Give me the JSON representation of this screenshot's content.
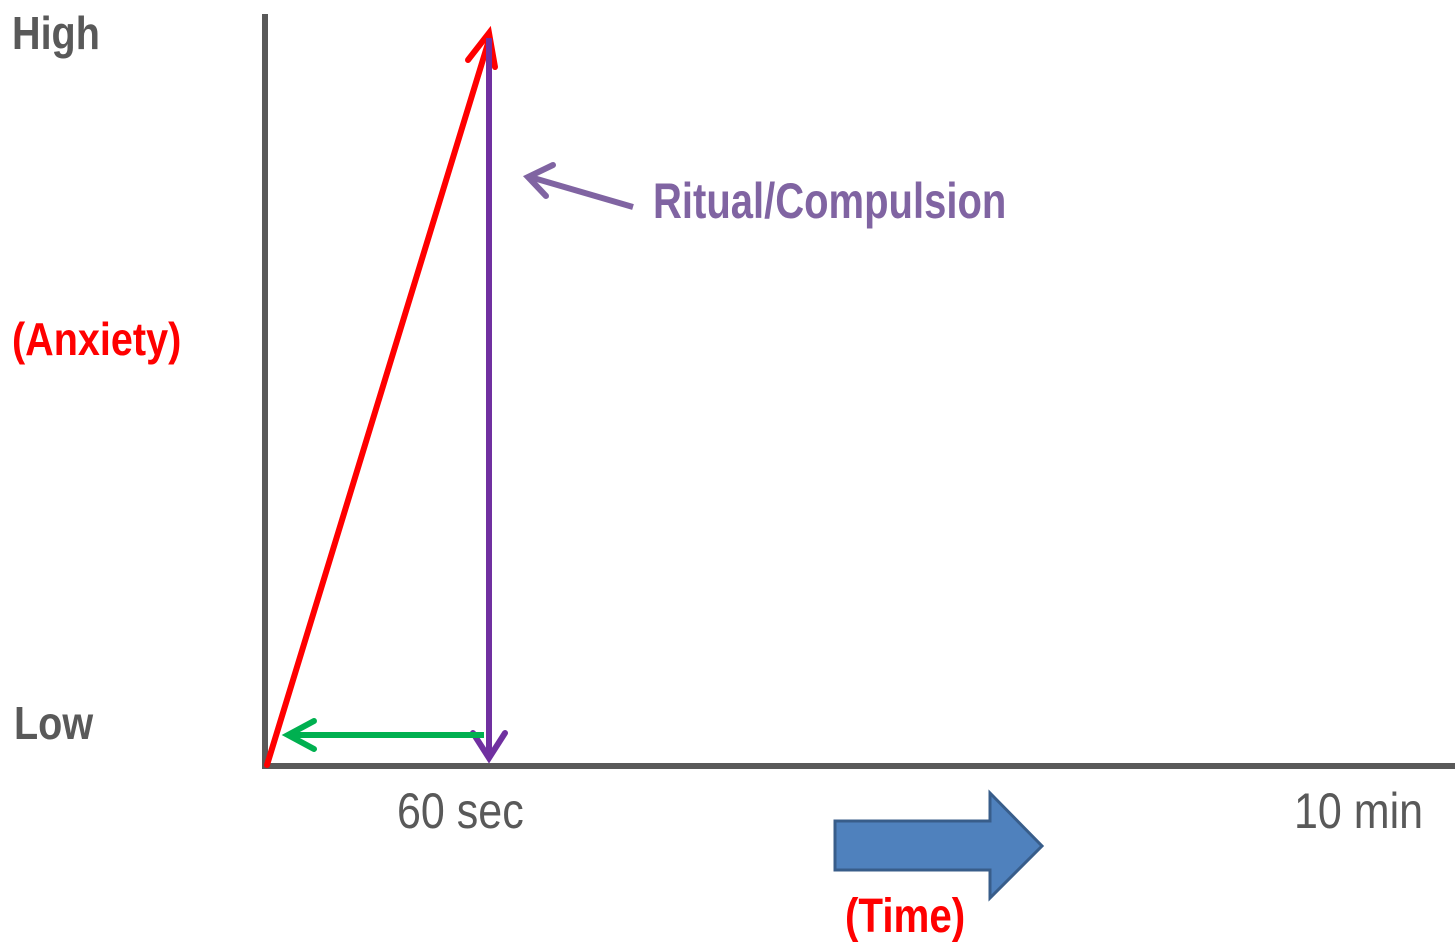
{
  "y_axis": {
    "top_label": "High",
    "bottom_label": "Low",
    "title": "(Anxiety)"
  },
  "x_axis": {
    "tick_1": "60 sec",
    "tick_2": "10 min",
    "title": "(Time)"
  },
  "annotation": {
    "ritual_label": "Ritual/Compulsion"
  },
  "colors": {
    "axis": "#595959",
    "anxiety_line": "#ff0000",
    "ritual_line": "#7030a0",
    "ritual_label": "#8064a2",
    "return_arrow": "#00b050",
    "time_arrow_fill": "#4f81bd",
    "time_arrow_stroke": "#385d8a"
  }
}
